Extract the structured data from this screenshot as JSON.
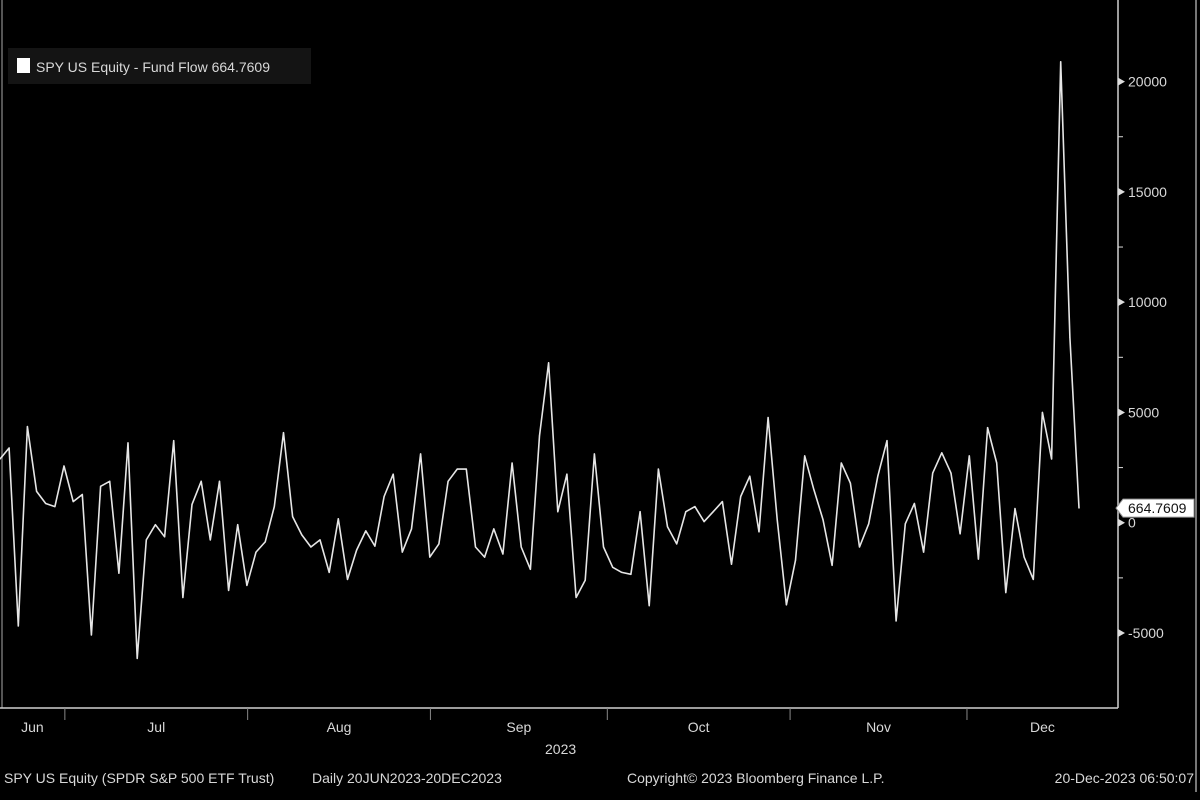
{
  "chart_data": {
    "type": "line",
    "legend": {
      "label": "SPY US Equity - Fund Flow 664.7609",
      "placement": "top-left"
    },
    "series": [
      {
        "name": "SPY US Equity - Fund Flow",
        "color": "#e6e6e6",
        "values": [
          2890,
          3390,
          -4680,
          4360,
          1420,
          870,
          730,
          2570,
          960,
          1280,
          -5090,
          1650,
          1880,
          -2290,
          3620,
          -6150,
          -780,
          -90,
          -640,
          3720,
          -3390,
          830,
          1880,
          -780,
          1880,
          -3070,
          -90,
          -2840,
          -1330,
          -870,
          730,
          4080,
          280,
          -550,
          -1100,
          -780,
          -2250,
          180,
          -2570,
          -1240,
          -370,
          -1060,
          1190,
          2200,
          -1330,
          -280,
          3120,
          -1560,
          -960,
          1880,
          2430,
          2430,
          -1100,
          -1560,
          -280,
          -1420,
          2710,
          -1100,
          -2110,
          3940,
          7250,
          500,
          2200,
          -3390,
          -2610,
          3120,
          -1100,
          -2020,
          -2250,
          -2340,
          500,
          -3760,
          2430,
          -180,
          -960,
          500,
          730,
          50,
          500,
          960,
          -1880,
          1190,
          2110,
          -410,
          4770,
          140,
          -3720,
          -1700,
          3030,
          1510,
          140,
          -1930,
          2710,
          1790,
          -1100,
          -50,
          2110,
          3720,
          -4450,
          -50,
          870,
          -1330,
          2250,
          3170,
          2250,
          -500,
          3030,
          -1650,
          4310,
          2710,
          -3170,
          640,
          -1560,
          -2570,
          5000,
          2890,
          20900,
          8400,
          664.7609
        ]
      }
    ],
    "last_value_label": "664.7609",
    "x_range": [
      "2023-06-20",
      "2023-12-20"
    ],
    "months": [
      {
        "label": "Jun",
        "date": "2023-06-20"
      },
      {
        "label": "Jul",
        "date": "2023-07-01"
      },
      {
        "label": "Aug",
        "date": "2023-08-01"
      },
      {
        "label": "Sep",
        "date": "2023-09-01"
      },
      {
        "label": "Oct",
        "date": "2023-10-01"
      },
      {
        "label": "Nov",
        "date": "2023-11-01"
      },
      {
        "label": "Dec",
        "date": "2023-12-01"
      }
    ],
    "year_label": "2023",
    "yticks": [
      20000,
      15000,
      10000,
      5000,
      0,
      -5000
    ],
    "ytick_labels": [
      "20000",
      "15000",
      "10000",
      "5000",
      "0",
      "-5000"
    ],
    "ylim": [
      -8400,
      23700
    ],
    "y_axis_side": "right",
    "grid": false,
    "background": "#000000"
  },
  "footer": {
    "security": "SPY US Equity (SPDR S&P 500 ETF Trust)",
    "range": "Daily 20JUN2023-20DEC2023",
    "copyright": "Copyright© 2023 Bloomberg Finance L.P.",
    "timestamp": "20-Dec-2023 06:50:07"
  }
}
